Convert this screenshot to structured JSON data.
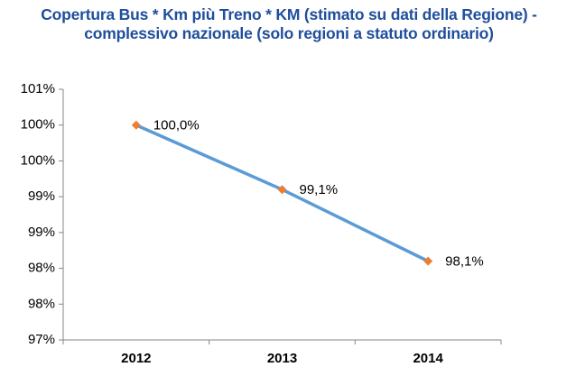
{
  "chart_data": {
    "type": "line",
    "title": "Copertura Bus * Km più Treno * KM (stimato su dati della Regione) - complessivo nazionale (solo regioni a statuto ordinario)",
    "categories": [
      "2012",
      "2013",
      "2014"
    ],
    "values": [
      100.0,
      99.1,
      98.1
    ],
    "value_labels": [
      "100,0%",
      "99,1%",
      "98,1%"
    ],
    "color": "#5b9bd5",
    "marker_color": "#ed7d31",
    "ylim": [
      97,
      100.5
    ],
    "yticks": [
      {
        "value": 97,
        "label": "97%"
      },
      {
        "value": 97.5,
        "label": "98%"
      },
      {
        "value": 98,
        "label": "98%"
      },
      {
        "value": 98.5,
        "label": "99%"
      },
      {
        "value": 99,
        "label": "99%"
      },
      {
        "value": 99.5,
        "label": "100%"
      },
      {
        "value": 100,
        "label": "100%"
      },
      {
        "value": 100.5,
        "label": "101%"
      }
    ],
    "grid": false
  }
}
